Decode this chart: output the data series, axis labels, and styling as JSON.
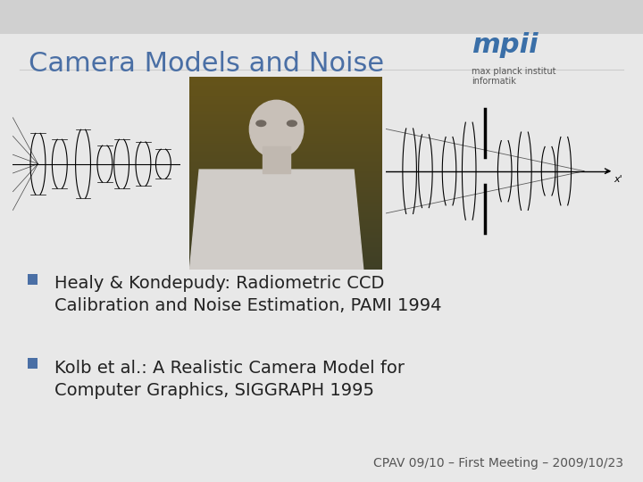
{
  "title": "Camera Models and Noise",
  "title_color": "#4a6fa5",
  "title_fontsize": 22,
  "background_color": "#e8e8e8",
  "slide_background": "#ffffff",
  "bullet_points": [
    "Healy & Kondepudy: Radiometric CCD\nCalibration and Noise Estimation, PAMI 1994",
    "Kolb et al.: A Realistic Camera Model for\nComputer Graphics, SIGGRAPH 1995"
  ],
  "bullet_color": "#4a6fa5",
  "bullet_fontsize": 14,
  "footer": "CPAV 09/10 – First Meeting – 2009/10/23",
  "footer_fontsize": 10,
  "footer_color": "#555555"
}
